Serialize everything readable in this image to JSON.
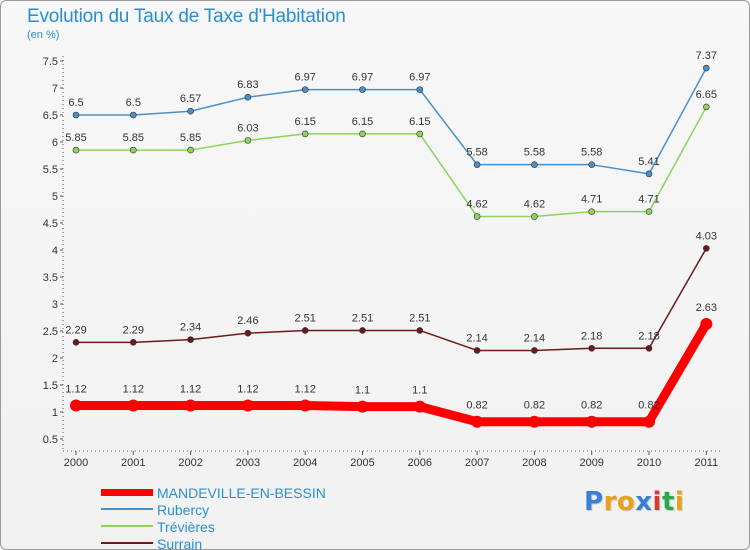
{
  "header": {
    "title": "Evolution du Taux de Taxe d'Habitation",
    "subtitle": "(en %)"
  },
  "brand": {
    "text": "Proxiti",
    "colors": [
      "#3a7fd5",
      "#e8a21a",
      "#e8a21a",
      "#3a7fd5",
      "#d83a2e",
      "#2aa84a",
      "#e8a21a"
    ]
  },
  "chart_data": {
    "type": "line",
    "title": "Evolution du Taux de Taxe d'Habitation",
    "subtitle": "(en %)",
    "x": [
      "2000",
      "2001",
      "2002",
      "2003",
      "2004",
      "2005",
      "2006",
      "2007",
      "2008",
      "2009",
      "2010",
      "2011"
    ],
    "ylim": [
      0.5,
      7.5
    ],
    "yticks": [
      "0.5",
      "1",
      "1.5",
      "2",
      "2.5",
      "3",
      "3.5",
      "4",
      "4.5",
      "5",
      "5.5",
      "6",
      "6.5",
      "7",
      "7.5"
    ],
    "grid": false,
    "legend_position": "bottom-left",
    "series": [
      {
        "name": "MANDEVILLE-EN-BESSIN",
        "color": "#ff0000",
        "values": [
          1.12,
          1.12,
          1.12,
          1.12,
          1.12,
          1.1,
          1.1,
          0.82,
          0.82,
          0.82,
          0.82,
          2.63
        ],
        "labels": [
          "1.12",
          "1.12",
          "1.12",
          "1.12",
          "1.12",
          "1.1",
          "1.1",
          "0.82",
          "0.82",
          "0.82",
          "0.82",
          "2.63"
        ]
      },
      {
        "name": "Rubercy",
        "color": "#4a90c8",
        "values": [
          6.5,
          6.5,
          6.57,
          6.83,
          6.97,
          6.97,
          6.97,
          5.58,
          5.58,
          5.58,
          5.41,
          7.37
        ],
        "labels": [
          "6.5",
          "6.5",
          "6.57",
          "6.83",
          "6.97",
          "6.97",
          "6.97",
          "5.58",
          "5.58",
          "5.58",
          "5.41",
          "7.37"
        ]
      },
      {
        "name": "Trévières",
        "color": "#8fd45a",
        "values": [
          5.85,
          5.85,
          5.85,
          6.03,
          6.15,
          6.15,
          6.15,
          4.62,
          4.62,
          4.71,
          4.71,
          6.65
        ],
        "labels": [
          "5.85",
          "5.85",
          "5.85",
          "6.03",
          "6.15",
          "6.15",
          "6.15",
          "4.62",
          "4.62",
          "4.71",
          "4.71",
          "6.65"
        ]
      },
      {
        "name": "Surrain",
        "color": "#6b1a1a",
        "values": [
          2.29,
          2.29,
          2.34,
          2.46,
          2.51,
          2.51,
          2.51,
          2.14,
          2.14,
          2.18,
          2.18,
          4.03
        ],
        "labels": [
          "2.29",
          "2.29",
          "2.34",
          "2.46",
          "2.51",
          "2.51",
          "2.51",
          "2.14",
          "2.14",
          "2.18",
          "2.18",
          "4.03"
        ]
      }
    ]
  }
}
